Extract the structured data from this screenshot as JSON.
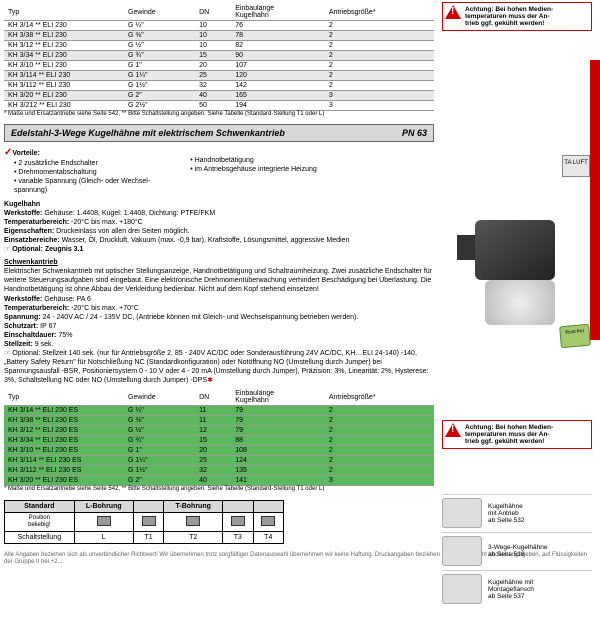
{
  "warn1": {
    "label": "Achtung:",
    "text": " Bei hohen Medien-\ntemperaturen muss der An-\ntrieb ggf. gekühlt werden!"
  },
  "table1": {
    "headers": [
      "Typ",
      "Gewinde",
      "DN",
      "Einbaulänge\nKugelhahn",
      "Antriebsgröße*"
    ],
    "rows": [
      [
        "KH 3/14 ** ELI 230",
        "G ¼\"",
        "10",
        "76",
        "2"
      ],
      [
        "KH 3/38 ** ELI 230",
        "G ⅜\"",
        "10",
        "78",
        "2"
      ],
      [
        "KH 3/12 ** ELI 230",
        "G ½\"",
        "10",
        "82",
        "2"
      ],
      [
        "KH 3/34 ** ELI 230",
        "G ¾\"",
        "15",
        "90",
        "2"
      ],
      [
        "KH 3/10 ** ELI 230",
        "G 1\"",
        "20",
        "107",
        "2"
      ],
      [
        "KH 3/114 ** ELI 230",
        "G 1¼\"",
        "25",
        "120",
        "2"
      ],
      [
        "KH 3/112 ** ELI 230",
        "G 1½\"",
        "32",
        "142",
        "2"
      ],
      [
        "KH 3/20 ** ELI 230",
        "G 2\"",
        "40",
        "165",
        "3"
      ],
      [
        "KH 3/212 ** ELI 230",
        "G 2½\"",
        "50",
        "194",
        "3"
      ]
    ]
  },
  "footnote1": "* Maße und Ersatzantriebe siehe Seite 542, ** Bitte Schaltstellung angeben. Siehe Tabelle (Standard-Stellung T1 oder L)",
  "section": {
    "title": "Edelstahl-3-Wege Kugelhähne mit elektrischem Schwenkantrieb",
    "pn": "PN 63"
  },
  "vorteile": {
    "label": "Vorteile:",
    "col1": [
      "2 zusätzliche Endschalter",
      "Drehmomentabschaltung",
      "variable Spannung (Gleich- oder Wechsel-\nspannung)"
    ],
    "col2": [
      "Handnotbetätigung",
      "im Antriebsgehäuse integrierte Heizung"
    ]
  },
  "kugelhahn": {
    "hdr": "Kugelhahn",
    "lines": [
      {
        "l": "Werkstoffe:",
        "v": " Gehäuse: 1.4408, Kugel: 1.4408, Dichtung: PTFE/FKM"
      },
      {
        "l": "Temperaturbereich:",
        "v": " -20°C bis max. +180°C"
      },
      {
        "l": "Eigenschaften:",
        "v": " Druckeinlass von allen drei Seiten möglich."
      },
      {
        "l": "Einsatzbereiche:",
        "v": " Wasser, Öl, Druckluft, Vakuum (max. -0,9 bar), Kraftstoffe, Lösungsmittel, aggressive Medien"
      }
    ],
    "opt": " Optional: Zeugnis 3.1"
  },
  "schwenk": {
    "hdr": "Schwenkantrieb",
    "desc": "Elektrischer Schwenkantrieb mit optischer Stellungsanzeige, Handnotbetätigung und Schaltraumheizung. Zwei zusätzliche Endschalter für weitere Steuerungsaufgaben sind eingebaut. Eine elektronische Drehmomentüberwachung verhindert Beschädigung bei Überlastung. Die Handnotbetätigung ist ohne Abbau der Verkleidung bedienbar. Nicht auf dem Kopf stehend einsetzen!",
    "lines": [
      {
        "l": "Werkstoffe:",
        "v": " Gehäuse: PA 6"
      },
      {
        "l": "Temperaturbereich:",
        "v": " -20°C bis max. +70°C"
      },
      {
        "l": "Spannung:",
        "v": " 24 - 240V AC / 24 - 135V DC, (Antriebe können mit Gleich- und Wechselspannung betrieben werden)."
      },
      {
        "l": "Schutzart:",
        "v": " IP 67"
      },
      {
        "l": "Einschaltdauer:",
        "v": " 75%"
      },
      {
        "l": "Stellzeit:",
        "v": " 9 sek."
      }
    ],
    "opt": " Optional: Stellzeit 140 sek. (nur für Antriebsgröße 2, 85 - 240V AC/DC oder Sonderausführung 24V AC/DC, KH…ELI 24-140) -140, „Battery Safety Return\" für Notschließung NC (Standardkonfiguration) oder Notöffnung NO (Umstellung durch Jumper) bei Spannungsausfall -BSR, Positioniersystem 0 - 10 V oder 4 - 20 mA (Umstellung durch Jumper), Präzision: 3%, Linearität: 2%, Hysterese: 3%, Schaltstellung NC oder NO (Umstellung durch Jumper) -DPS"
  },
  "table2": {
    "headers": [
      "Typ",
      "Gewinde",
      "DN",
      "Einbaulänge\nKugelhahn",
      "Antriebsgröße*"
    ],
    "rows": [
      [
        "KH 3/14 ** ELI 230 ES",
        "G ¼\"",
        "11",
        "79",
        "2"
      ],
      [
        "KH 3/38 ** ELI 230 ES",
        "G ⅜\"",
        "11",
        "79",
        "2"
      ],
      [
        "KH 3/12 ** ELI 230 ES",
        "G ½\"",
        "12",
        "79",
        "2"
      ],
      [
        "KH 3/34 ** ELI 230 ES",
        "G ¾\"",
        "15",
        "88",
        "2"
      ],
      [
        "KH 3/10 ** ELI 230 ES",
        "G 1\"",
        "20",
        "108",
        "2"
      ],
      [
        "KH 3/114 ** ELI 230 ES",
        "G 1¼\"",
        "25",
        "124",
        "2"
      ],
      [
        "KH 3/112 ** ELI 230 ES",
        "G 1½\"",
        "32",
        "135",
        "2"
      ],
      [
        "KH 3/20 ** ELI 230 ES",
        "G 2\"",
        "40",
        "141",
        "3"
      ]
    ]
  },
  "footnote2": "* Maße und Ersatzantriebe siehe Seite 542, ** Bitte Schaltstellung angeben. Siehe Tabelle (Standard-Stellung T1 oder L)",
  "bore": {
    "hdrs": [
      "Standard",
      "L-Bohrung",
      "",
      "T-Bohrung",
      "",
      ""
    ],
    "row1": "Position\nbeliebig!",
    "row2": [
      "Schaltstellung",
      "L",
      "T1",
      "T2",
      "T3",
      "T4"
    ]
  },
  "sidebar": [
    {
      "t": "Kugelhähne\nmit Antrieb\nab Seite 532"
    },
    {
      "t": "3-Wege-Kugelhähne\nab Seite 516"
    },
    {
      "t": "Kugelhähne mit\nMontageflansch\nab Seite 537"
    }
  ],
  "badge_taluft": "TA\nLUFT",
  "badge_rost": "Rost\nfrei",
  "footer": "Alle Angaben beziehen sich als unverbindlicher Richtwert! Wir übernehmen trotz sorgfältiger Datenauswahl übernehmen wir keine Haftung. Druckangaben beziehen sich, soweit nicht anders angegeben, auf Flüssigkeiten der Gruppe II bei +2..."
}
